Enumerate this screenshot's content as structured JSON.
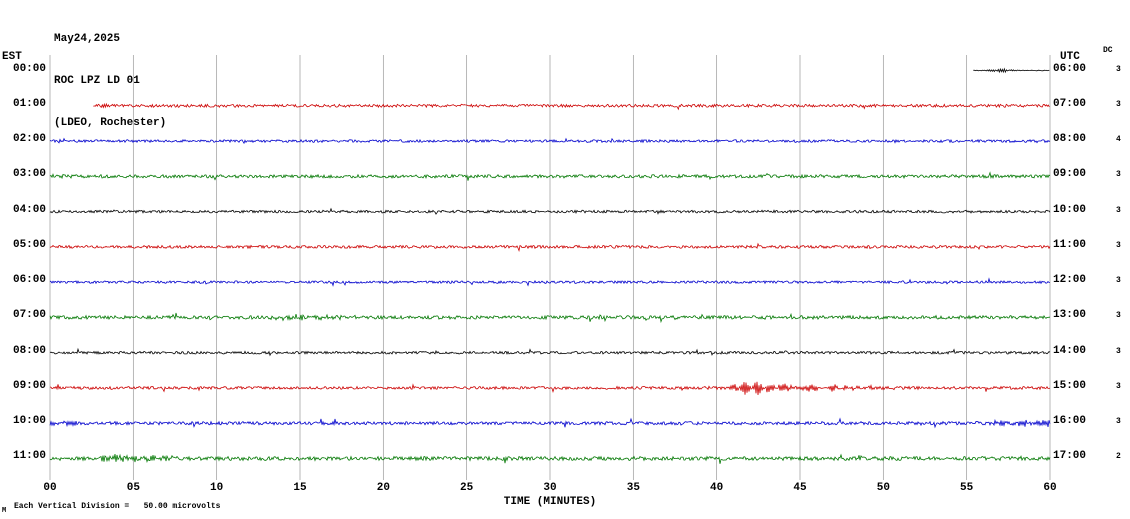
{
  "header": {
    "date": "May24,2025",
    "station": "ROC LPZ LD 01",
    "location": "(LDEO, Rochester)"
  },
  "axes": {
    "left_label": "EST",
    "right_label": "UTC",
    "dc_label": "DC",
    "x_title": "TIME (MINUTES)",
    "x_ticks": [
      "00",
      "05",
      "10",
      "15",
      "20",
      "25",
      "30",
      "35",
      "40",
      "45",
      "50",
      "55",
      "60"
    ]
  },
  "footer": {
    "scale_note": "Each Vertical Division =   50.00 microvolts",
    "corner_mark": "M"
  },
  "colors": {
    "black": "#000000",
    "red": "#cc0000",
    "blue": "#0000cc",
    "green": "#007700",
    "grid": "#999999"
  },
  "chart_data": {
    "type": "line",
    "title": "ROC LPZ LD 01 helicorder record, May 24 2025 (LDEO, Rochester)",
    "xlabel": "TIME (MINUTES)",
    "x_range_minutes": [
      0,
      60
    ],
    "x_tick_interval_minutes": 5,
    "grid": true,
    "row_spacing_hours": 1,
    "scale": "50.00 microvolts per vertical division",
    "rows": [
      {
        "est": "00:00",
        "utc": "06:00",
        "dc": "3",
        "color": "black",
        "segments": [
          {
            "start": 55.4,
            "end": 60,
            "amp": 0.35
          }
        ],
        "events": [
          {
            "center": 57.0,
            "width": 0.7,
            "amp": 2.2,
            "freq": 9
          }
        ]
      },
      {
        "est": "01:00",
        "utc": "07:00",
        "dc": "3",
        "color": "red",
        "segments": [
          {
            "start": 2.6,
            "end": 60,
            "amp": 1.4
          }
        ],
        "events": [
          {
            "center": 3.0,
            "width": 0.5,
            "amp": 1.5,
            "freq": 8
          }
        ]
      },
      {
        "est": "02:00",
        "utc": "08:00",
        "dc": "4",
        "color": "blue",
        "segments": [
          {
            "start": 0,
            "end": 60,
            "amp": 1.3
          }
        ],
        "events": [
          {
            "center": 0.8,
            "width": 0.8,
            "amp": 1.4,
            "freq": 8
          }
        ]
      },
      {
        "est": "03:00",
        "utc": "09:00",
        "dc": "3",
        "color": "green",
        "segments": [
          {
            "start": 0,
            "end": 60,
            "amp": 1.6
          }
        ],
        "events": [
          {
            "center": 0.6,
            "width": 0.8,
            "amp": 1.3,
            "freq": 8
          }
        ]
      },
      {
        "est": "04:00",
        "utc": "10:00",
        "dc": "3",
        "color": "black",
        "segments": [
          {
            "start": 0,
            "end": 60,
            "amp": 1.3
          }
        ],
        "events": []
      },
      {
        "est": "05:00",
        "utc": "11:00",
        "dc": "3",
        "color": "red",
        "segments": [
          {
            "start": 0,
            "end": 60,
            "amp": 1.4
          }
        ],
        "events": []
      },
      {
        "est": "06:00",
        "utc": "12:00",
        "dc": "3",
        "color": "blue",
        "segments": [
          {
            "start": 0,
            "end": 60,
            "amp": 1.2
          }
        ],
        "events": []
      },
      {
        "est": "07:00",
        "utc": "13:00",
        "dc": "3",
        "color": "green",
        "segments": [
          {
            "start": 0,
            "end": 60,
            "amp": 1.7
          }
        ],
        "events": [
          {
            "center": 14.5,
            "width": 1.2,
            "amp": 1.8,
            "freq": 7
          },
          {
            "center": 16.8,
            "width": 0.9,
            "amp": 1.5,
            "freq": 7
          }
        ]
      },
      {
        "est": "08:00",
        "utc": "14:00",
        "dc": "3",
        "color": "black",
        "segments": [
          {
            "start": 0,
            "end": 60,
            "amp": 1.3
          }
        ],
        "events": []
      },
      {
        "est": "09:00",
        "utc": "15:00",
        "dc": "3",
        "color": "red",
        "segments": [
          {
            "start": 0,
            "end": 60,
            "amp": 1.4
          }
        ],
        "events": [
          {
            "center": 42.3,
            "width": 1.5,
            "amp": 7.0,
            "freq": 9
          },
          {
            "center": 45.3,
            "width": 2.2,
            "amp": 3.2,
            "freq": 8
          },
          {
            "center": 48.6,
            "width": 2.0,
            "amp": 1.8,
            "freq": 7
          }
        ]
      },
      {
        "est": "10:00",
        "utc": "16:00",
        "dc": "3",
        "color": "blue",
        "segments": [
          {
            "start": 0,
            "end": 60,
            "amp": 1.6
          }
        ],
        "events": [
          {
            "center": 0.6,
            "width": 0.9,
            "amp": 2.2,
            "freq": 8
          },
          {
            "center": 57.2,
            "width": 1.0,
            "amp": 1.8,
            "freq": 8
          },
          {
            "center": 59.3,
            "width": 1.2,
            "amp": 3.2,
            "freq": 8
          }
        ]
      },
      {
        "est": "11:00",
        "utc": "17:00",
        "dc": "2",
        "color": "green",
        "segments": [
          {
            "start": 0,
            "end": 60,
            "amp": 1.9
          }
        ],
        "events": [
          {
            "center": 4.2,
            "width": 1.4,
            "amp": 3.2,
            "freq": 7
          },
          {
            "center": 6.6,
            "width": 1.0,
            "amp": 1.8,
            "freq": 7
          }
        ]
      }
    ]
  }
}
